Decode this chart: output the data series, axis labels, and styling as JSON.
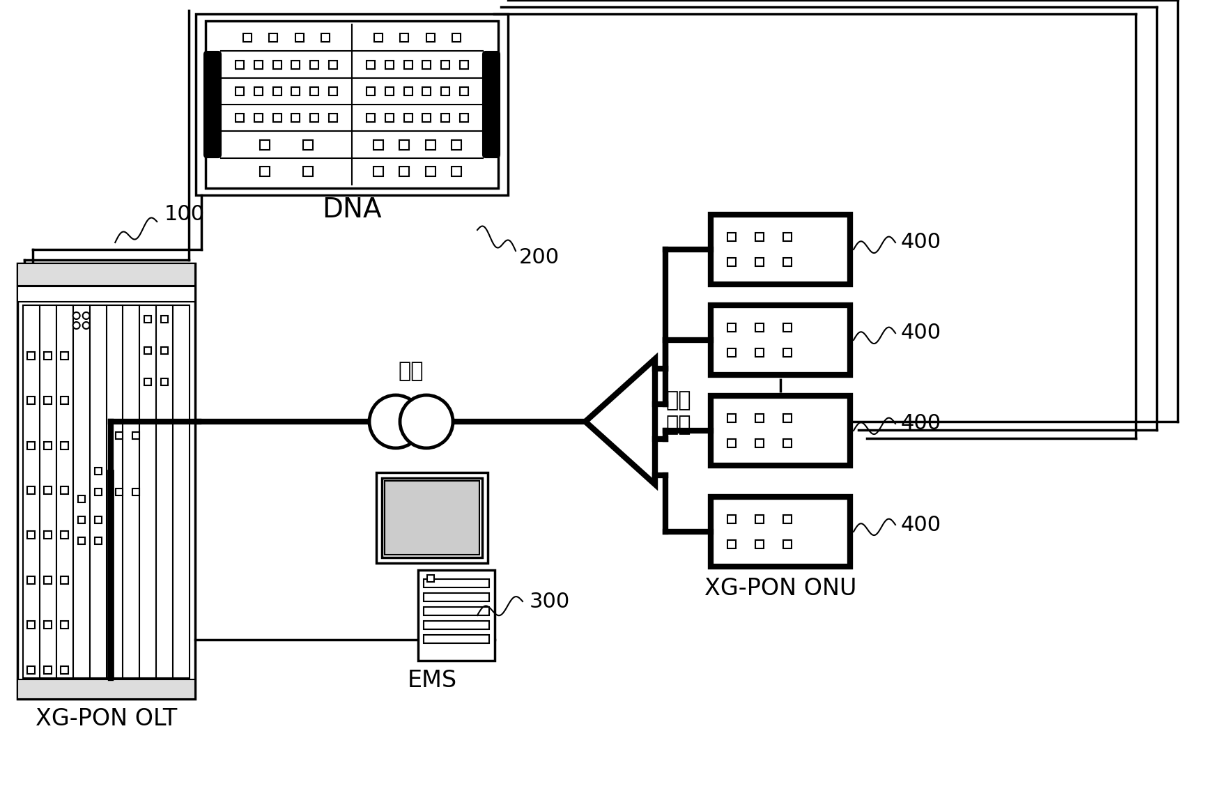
{
  "bg_color": "#ffffff",
  "line_color": "#000000",
  "labels": {
    "OLT": "XG-PON OLT",
    "DNA": "DNA",
    "EMS": "EMS",
    "splitter_line1": "分光",
    "splitter_line2": "器件",
    "fiber_label": "光纤",
    "ONU": "XG-PON ONU",
    "ref_100": "100",
    "ref_200": "200",
    "ref_300": "300",
    "ref_400": "400"
  },
  "figsize": [
    17.48,
    11.48
  ],
  "dpi": 100,
  "xlim": [
    0,
    1748
  ],
  "ylim": [
    0,
    1148
  ]
}
